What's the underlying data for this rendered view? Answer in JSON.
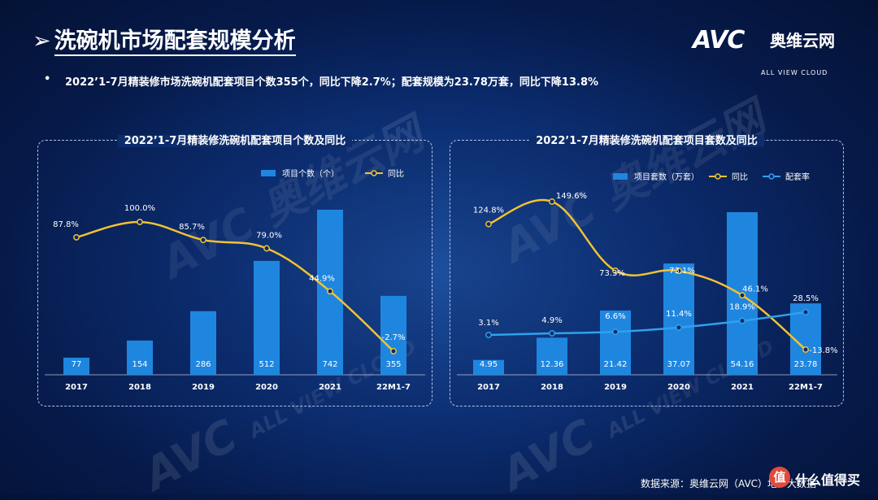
{
  "header": {
    "title": "洗碗机市场配套规模分析",
    "title_arrow": "➢",
    "logo_mark": "AVC",
    "logo_cn": "奥维云网",
    "logo_en": "ALL VIEW CLOUD"
  },
  "summary": {
    "bullet": "•",
    "text": "2022’1-7月精装修市场洗碗机配套项目个数355个，同比下降2.7%；配套规模为23.78万套，同比下降13.8%"
  },
  "watermark": {
    "mark": "AVC",
    "cn": "奥维云网",
    "en": "ALL VIEW CLOUD"
  },
  "footer": {
    "source": "数据来源：奥维云网（AVC）地产大数据",
    "badge_icon": "值",
    "badge_text": "什么值得买"
  },
  "colors": {
    "bar": "#1f86e0",
    "line_yoy": "#f2c230",
    "line_rate": "#2ea2ee"
  },
  "chart_data": [
    {
      "type": "bar",
      "title": "2022’1-7月精装修洗碗机配套项目个数及同比",
      "categories": [
        "2017",
        "2018",
        "2019",
        "2020",
        "2021",
        "22M1-7"
      ],
      "series": [
        {
          "name": "项目个数（个）",
          "type": "bar",
          "values": [
            77,
            154,
            286,
            512,
            742,
            355
          ],
          "labels": [
            "77",
            "154",
            "286",
            "512",
            "742",
            "355"
          ]
        },
        {
          "name": "同比",
          "type": "line",
          "values": [
            87.8,
            100.0,
            85.7,
            79.0,
            44.9,
            -2.7
          ],
          "labels": [
            "87.8%",
            "100.0%",
            "85.7%",
            "79.0%",
            "44.9%",
            "-2.7%"
          ]
        }
      ],
      "legend": "top-right",
      "grid": false
    },
    {
      "type": "bar",
      "title": "2022’1-7月精装修洗碗机配套项目套数及同比",
      "categories": [
        "2017",
        "2018",
        "2019",
        "2020",
        "2021",
        "22M1-7"
      ],
      "series": [
        {
          "name": "项目套数（万套）",
          "type": "bar",
          "values": [
            4.95,
            12.36,
            21.42,
            37.07,
            54.16,
            23.78
          ],
          "labels": [
            "4.95",
            "12.36",
            "21.42",
            "37.07",
            "54.16",
            "23.78"
          ]
        },
        {
          "name": "同比",
          "type": "line",
          "values": [
            124.8,
            149.6,
            73.3,
            73.1,
            46.1,
            -13.8
          ],
          "labels": [
            "124.8%",
            "149.6%",
            "73.3%",
            "73.1%",
            "46.1%",
            "-13.8%"
          ]
        },
        {
          "name": "配套率",
          "type": "line",
          "values": [
            3.1,
            4.9,
            6.6,
            11.4,
            18.9,
            28.5
          ],
          "labels": [
            "3.1%",
            "4.9%",
            "6.6%",
            "11.4%",
            "18.9%",
            "28.5%"
          ]
        }
      ],
      "legend": "top-right",
      "grid": false
    }
  ]
}
